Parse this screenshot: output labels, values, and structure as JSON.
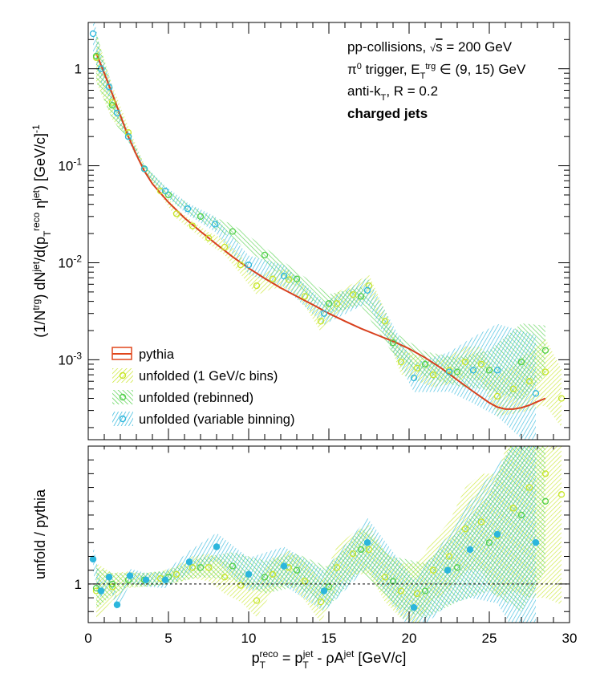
{
  "chart_data": [
    {
      "type": "line",
      "panel": "top",
      "ylabel": "(1/N^trg) dN^jet/d(p_T^reco η^jet) [GeV/c]^-1",
      "yscale": "log",
      "ylim": [
        0.00015,
        3.0
      ],
      "xlim": [
        0,
        30
      ],
      "y_ticks": [
        "10^{-3}",
        "10^{-2}",
        "10^{-1}",
        "1"
      ],
      "annotations": [
        "pp-collisions, √s = 200 GeV",
        "π⁰ trigger, E_T^trg ∈ (9, 15) GeV",
        "anti-k_T, R = 0.2",
        "charged jets"
      ],
      "legend": {
        "placement": "bottom-left",
        "entries": [
          {
            "label": "pythia",
            "style": "line-box",
            "color": "#e0461b"
          },
          {
            "label": "unfolded (1 GeV/c bins)",
            "style": "open-marker",
            "color": "#c8e62a"
          },
          {
            "label": "unfolded (rebinned)",
            "style": "open-marker",
            "color": "#52d04a"
          },
          {
            "label": "unfolded (variable binning)",
            "style": "open-marker",
            "color": "#2cb6dc"
          }
        ]
      },
      "series": [
        {
          "name": "pythia",
          "color": "#d8401e",
          "x": [
            0.5,
            1,
            1.5,
            2,
            2.5,
            3,
            3.5,
            4,
            5,
            6,
            7,
            8,
            9,
            10,
            11,
            12,
            13,
            14,
            15,
            16,
            17,
            18,
            19,
            20,
            21,
            22,
            23,
            24,
            25,
            25.5,
            26,
            26.5,
            27,
            27.5,
            28,
            28.5
          ],
          "y": [
            1.45,
            0.9,
            0.55,
            0.33,
            0.2,
            0.13,
            0.088,
            0.065,
            0.042,
            0.029,
            0.021,
            0.0155,
            0.0115,
            0.0088,
            0.0069,
            0.0055,
            0.0045,
            0.0037,
            0.003,
            0.0025,
            0.0021,
            0.0018,
            0.00155,
            0.0013,
            0.00105,
            0.00082,
            0.00062,
            0.00047,
            0.00036,
            0.000325,
            0.00031,
            0.00031,
            0.00032,
            0.00034,
            0.00037,
            0.0004
          ]
        },
        {
          "name": "unfolded (1 GeV/c bins)",
          "color": "#c8e62a",
          "x": [
            0.5,
            1.5,
            2.5,
            3.5,
            4.5,
            5.5,
            6.5,
            7.5,
            8.5,
            9.5,
            10.5,
            11.5,
            12.5,
            13.5,
            14.5,
            15.5,
            16.5,
            17.5,
            18.5,
            19.5,
            20.5,
            21.5,
            22.5,
            23.5,
            24.5,
            25.5,
            26.5,
            27.5,
            28.5,
            29.5
          ],
          "y": [
            1.3,
            0.45,
            0.22,
            0.093,
            0.055,
            0.032,
            0.024,
            0.018,
            0.0145,
            0.0095,
            0.0058,
            0.0068,
            0.0067,
            0.0045,
            0.0025,
            0.0038,
            0.0047,
            0.0058,
            0.0025,
            0.00095,
            0.00082,
            0.0007,
            0.00078,
            0.00095,
            0.0009,
            0.00042,
            0.0005,
            0.0006,
            0.00075,
            0.0004
          ],
          "err_rel": [
            0.8,
            0.5,
            0.15,
            0.1,
            0.1,
            0.12,
            0.12,
            0.15,
            0.2,
            0.25,
            0.25,
            0.25,
            0.25,
            0.25,
            0.3,
            0.3,
            0.3,
            0.3,
            0.3,
            0.35,
            0.35,
            0.35,
            0.4,
            0.45,
            0.5,
            0.6,
            0.8,
            1.0,
            1.2,
            1.0
          ]
        },
        {
          "name": "unfolded (rebinned)",
          "color": "#52d04a",
          "x": [
            0.5,
            1.5,
            2.5,
            3.5,
            5,
            7,
            9,
            11,
            13,
            15,
            17,
            19,
            21,
            23,
            25,
            27,
            28.5
          ],
          "y": [
            1.35,
            0.42,
            0.2,
            0.093,
            0.05,
            0.03,
            0.021,
            0.012,
            0.0068,
            0.0038,
            0.0045,
            0.0015,
            0.0009,
            0.00075,
            0.00078,
            0.00095,
            0.00125
          ],
          "err_rel": [
            0.8,
            0.4,
            0.12,
            0.08,
            0.1,
            0.12,
            0.18,
            0.2,
            0.2,
            0.25,
            0.25,
            0.3,
            0.35,
            0.4,
            0.6,
            1.5,
            0.8
          ]
        },
        {
          "name": "unfolded (variable binning)",
          "color": "#2cb6dc",
          "x": [
            0.3,
            0.8,
            1.3,
            1.8,
            2.5,
            3.5,
            4.8,
            6.2,
            7.9,
            10,
            12.2,
            14.7,
            17.4,
            20.3,
            22.5,
            24,
            25.5,
            27.9
          ],
          "y": [
            2.3,
            1.0,
            0.65,
            0.35,
            0.2,
            0.093,
            0.055,
            0.036,
            0.025,
            0.0095,
            0.0073,
            0.003,
            0.0052,
            0.00065,
            0.00075,
            0.00078,
            0.00078,
            0.00045
          ],
          "err_rel": [
            0.6,
            0.4,
            0.3,
            0.2,
            0.12,
            0.1,
            0.12,
            0.15,
            0.2,
            0.25,
            0.3,
            0.3,
            0.35,
            0.4,
            0.6,
            1.2,
            2.0,
            3.0
          ]
        }
      ]
    },
    {
      "type": "scatter",
      "panel": "bottom",
      "ylabel": "unfold / pythia",
      "xlabel": "p_T^reco = p_T^jet - ρA^jet [GeV/c]",
      "xlim": [
        0,
        30
      ],
      "ylim": [
        0.72,
        2.0
      ],
      "x_ticks": [
        "0",
        "5",
        "10",
        "15",
        "20",
        "25",
        "30"
      ],
      "y_ticks": [
        "1"
      ],
      "reference_line": 1.0,
      "series": [
        {
          "name": "unfolded (1 GeV/c bins)",
          "color": "#c8e62a",
          "x": [
            0.5,
            1.5,
            2.5,
            3.5,
            4.5,
            5.5,
            6.5,
            7.5,
            8.5,
            9.5,
            10.5,
            11.5,
            12.5,
            13.5,
            14.5,
            15.5,
            16.5,
            17.5,
            18.5,
            19.5,
            20.5,
            21.5,
            22.5,
            23.5,
            24.5,
            25.5,
            26.5,
            27.5,
            28.5,
            29.5
          ],
          "y": [
            0.95,
            0.98,
            1.03,
            1.03,
            1.04,
            1.07,
            1.12,
            1.12,
            1.05,
            0.99,
            0.88,
            1.07,
            1.12,
            1.02,
            0.87,
            1.12,
            1.22,
            1.25,
            1.05,
            0.95,
            0.93,
            1.1,
            1.2,
            1.4,
            1.45,
            1.35,
            1.55,
            1.7,
            1.8,
            1.65
          ],
          "err_abs": [
            0.2,
            0.1,
            0.06,
            0.05,
            0.05,
            0.06,
            0.08,
            0.1,
            0.12,
            0.12,
            0.12,
            0.12,
            0.12,
            0.14,
            0.15,
            0.15,
            0.15,
            0.18,
            0.18,
            0.2,
            0.22,
            0.22,
            0.25,
            0.3,
            0.35,
            0.45,
            0.6,
            0.8,
            0.9,
            0.8
          ]
        },
        {
          "name": "unfolded (rebinned)",
          "color": "#52d04a",
          "x": [
            0.5,
            1.5,
            2.5,
            3.5,
            5,
            7,
            9,
            11,
            13,
            15,
            17,
            19,
            21,
            23,
            25,
            27,
            28.5
          ],
          "y": [
            0.97,
            1.0,
            1.03,
            1.03,
            1.05,
            1.12,
            1.13,
            1.05,
            1.1,
            0.98,
            1.25,
            1.02,
            0.95,
            1.12,
            1.3,
            1.5,
            1.6
          ],
          "err_abs": [
            0.15,
            0.08,
            0.05,
            0.05,
            0.05,
            0.07,
            0.1,
            0.12,
            0.12,
            0.14,
            0.15,
            0.18,
            0.2,
            0.25,
            0.35,
            0.7,
            0.5
          ]
        },
        {
          "name": "unfolded (variable binning)",
          "color": "#2cb6dc",
          "x": [
            0.3,
            0.8,
            1.3,
            1.8,
            2.6,
            3.6,
            4.8,
            6.3,
            8,
            10,
            12.2,
            14.7,
            17.4,
            20.3,
            22.4,
            23.8,
            25.5,
            27.9
          ],
          "y": [
            1.18,
            0.95,
            1.05,
            0.85,
            1.06,
            1.03,
            1.03,
            1.16,
            1.27,
            1.07,
            1.13,
            0.95,
            1.3,
            0.83,
            1.1,
            1.25,
            1.36,
            1.3
          ],
          "err_abs": [
            0.1,
            0.06,
            0.05,
            0.05,
            0.05,
            0.05,
            0.06,
            0.08,
            0.1,
            0.12,
            0.14,
            0.15,
            0.18,
            0.2,
            0.25,
            0.35,
            0.5,
            0.9
          ]
        }
      ]
    }
  ]
}
